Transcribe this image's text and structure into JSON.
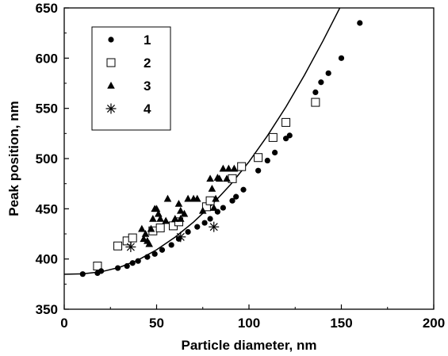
{
  "chart_data": {
    "type": "scatter",
    "xlabel": "Particle diameter, nm",
    "ylabel": "Peak position, nm",
    "xlim": [
      0,
      200
    ],
    "ylim": [
      350,
      650
    ],
    "xticks": [
      "0",
      "50",
      "100",
      "150",
      "200"
    ],
    "yticks": [
      "350",
      "400",
      "450",
      "500",
      "550",
      "600",
      "650"
    ],
    "grid": false,
    "legend_position": "top-left",
    "series": [
      {
        "name": "1",
        "marker": "filled-circle",
        "points": [
          [
            10,
            385
          ],
          [
            18,
            386
          ],
          [
            20,
            388
          ],
          [
            29,
            391
          ],
          [
            34,
            393
          ],
          [
            37,
            396
          ],
          [
            40,
            398
          ],
          [
            45,
            402
          ],
          [
            49,
            405
          ],
          [
            53,
            409
          ],
          [
            58,
            414
          ],
          [
            62,
            420
          ],
          [
            67,
            427
          ],
          [
            72,
            432
          ],
          [
            76,
            436
          ],
          [
            79,
            440
          ],
          [
            83,
            447
          ],
          [
            86,
            451
          ],
          [
            91,
            458
          ],
          [
            93,
            462
          ],
          [
            97,
            469
          ],
          [
            105,
            488
          ],
          [
            110,
            498
          ],
          [
            114,
            506
          ],
          [
            120,
            520
          ],
          [
            122,
            523
          ],
          [
            136,
            566
          ],
          [
            139,
            576
          ],
          [
            143,
            585
          ],
          [
            150,
            600
          ],
          [
            160,
            635
          ]
        ]
      },
      {
        "name": "2",
        "marker": "open-square",
        "points": [
          [
            18,
            393
          ],
          [
            29,
            413
          ],
          [
            34,
            418
          ],
          [
            37,
            421
          ],
          [
            48,
            428
          ],
          [
            52,
            431
          ],
          [
            59,
            433
          ],
          [
            62,
            437
          ],
          [
            77,
            452
          ],
          [
            79,
            458
          ],
          [
            91,
            480
          ],
          [
            96,
            492
          ],
          [
            105,
            501
          ],
          [
            113,
            521
          ],
          [
            120,
            536
          ],
          [
            136,
            556
          ]
        ]
      },
      {
        "name": "3",
        "marker": "filled-triangle",
        "points": [
          [
            42,
            430
          ],
          [
            43,
            420
          ],
          [
            44,
            425
          ],
          [
            45,
            418
          ],
          [
            46,
            415
          ],
          [
            47,
            430
          ],
          [
            48,
            440
          ],
          [
            49,
            450
          ],
          [
            50,
            450
          ],
          [
            51,
            445
          ],
          [
            52,
            440
          ],
          [
            55,
            438
          ],
          [
            56,
            460
          ],
          [
            60,
            440
          ],
          [
            62,
            455
          ],
          [
            63,
            448
          ],
          [
            63,
            440
          ],
          [
            65,
            445
          ],
          [
            67,
            460
          ],
          [
            70,
            460
          ],
          [
            72,
            460
          ],
          [
            75,
            448
          ],
          [
            79,
            480
          ],
          [
            80,
            470
          ],
          [
            81,
            451
          ],
          [
            82,
            460
          ],
          [
            83,
            481
          ],
          [
            84,
            480
          ],
          [
            86,
            490
          ],
          [
            88,
            480
          ],
          [
            89,
            490
          ],
          [
            92,
            490
          ]
        ]
      },
      {
        "name": "4",
        "marker": "asterisk",
        "points": [
          [
            36,
            412
          ],
          [
            63,
            422
          ],
          [
            81,
            432
          ]
        ]
      }
    ],
    "fit_curve": {
      "description_type": "line",
      "points": [
        [
          0,
          384.8
        ],
        [
          10,
          385.2
        ],
        [
          20,
          387.3
        ],
        [
          30,
          391.8
        ],
        [
          40,
          399
        ],
        [
          50,
          409.2
        ],
        [
          60,
          421.8
        ],
        [
          70,
          436.8
        ],
        [
          80,
          454.2
        ],
        [
          90,
          474
        ],
        [
          100,
          496.8
        ],
        [
          110,
          522.7
        ],
        [
          120,
          551.4
        ],
        [
          130,
          583
        ],
        [
          140,
          617
        ],
        [
          150,
          653
        ]
      ]
    }
  }
}
